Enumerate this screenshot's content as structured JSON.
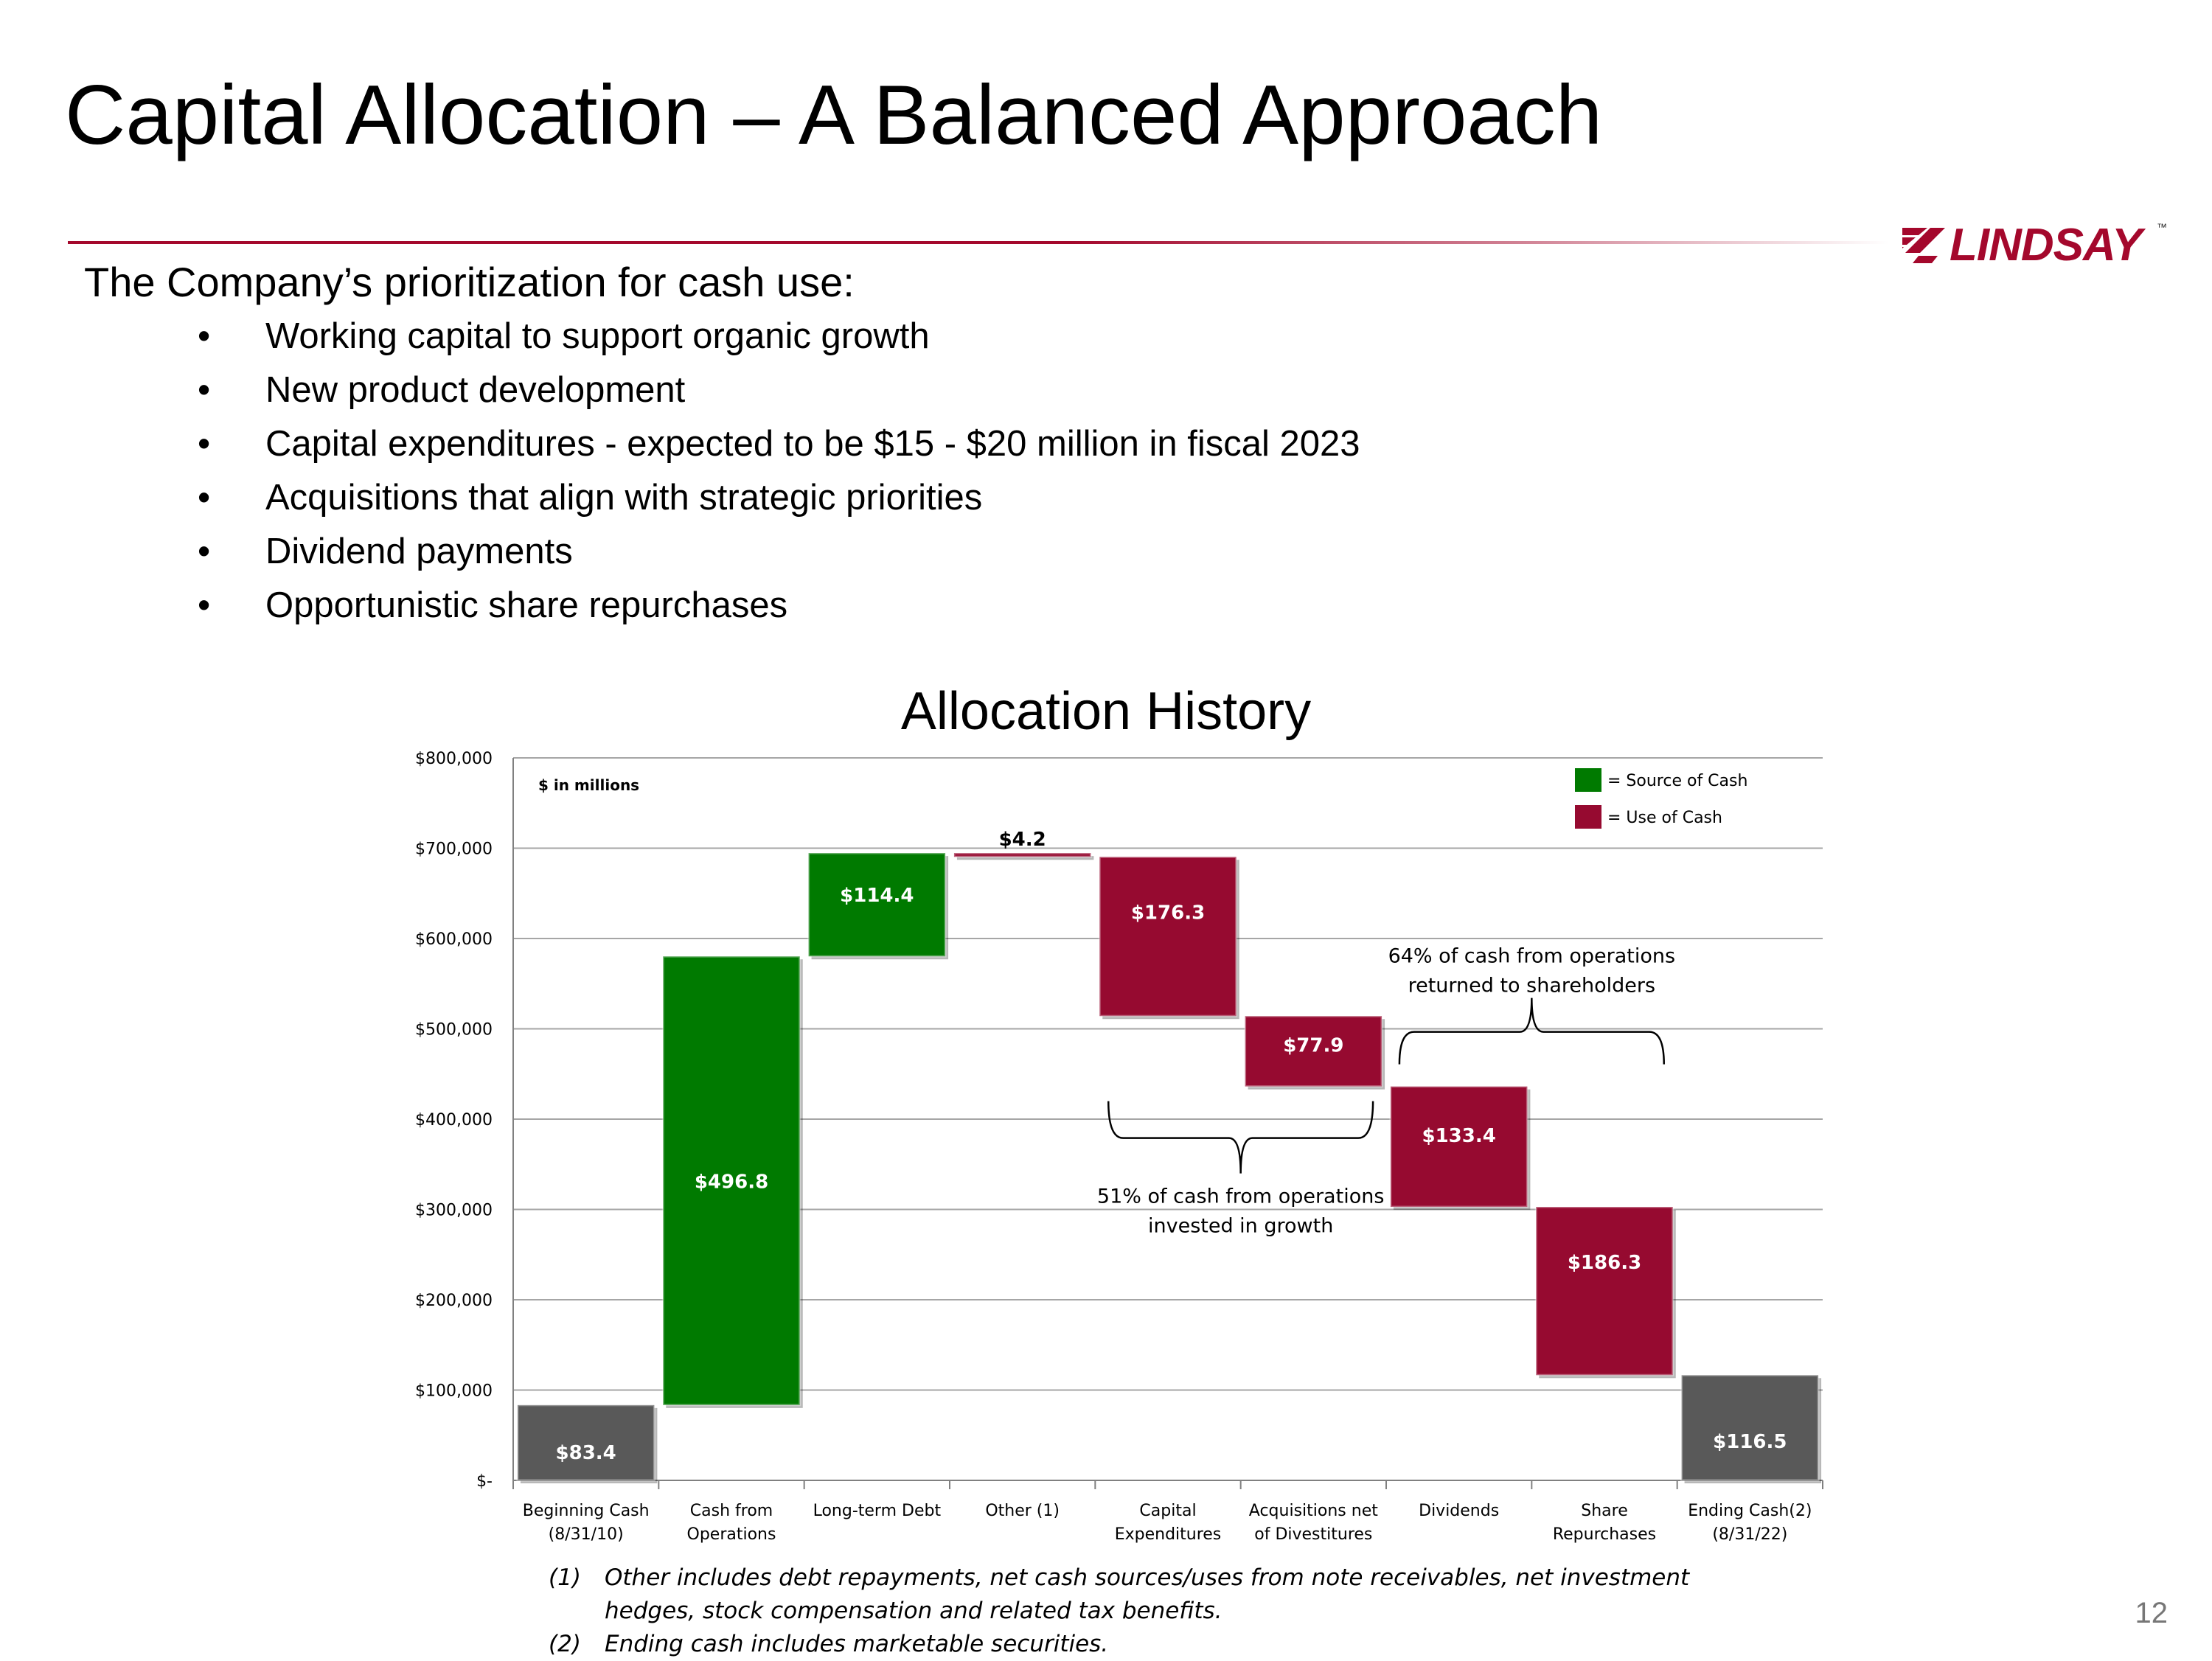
{
  "title": "Capital Allocation – A Balanced Approach",
  "logo": {
    "text": "LINDSAY",
    "tm": "™",
    "color": "#a4082c"
  },
  "intro": "The Company’s prioritization for cash use:",
  "bullet_symbol": "•",
  "bullets": [
    "Working capital to support organic growth",
    "New product development",
    "Capital expenditures - expected to be $15 - $20 million in fiscal 2023",
    "Acquisitions that align with strategic priorities",
    "Dividend payments",
    "Opportunistic share repurchases"
  ],
  "chart_data": {
    "type": "bar",
    "subtype": "waterfall",
    "title": "Allocation History",
    "units_note": "$ in millions",
    "ylim": [
      0,
      800000
    ],
    "yticks": [
      0,
      100000,
      200000,
      300000,
      400000,
      500000,
      600000,
      700000,
      800000
    ],
    "ytick_labels": [
      "$-",
      "$100,000",
      "$200,000",
      "$300,000",
      "$400,000",
      "$500,000",
      "$600,000",
      "$700,000",
      "$800,000"
    ],
    "grid": true,
    "categories": [
      [
        "Beginning Cash",
        "(8/31/10)"
      ],
      [
        "Cash from",
        "Operations"
      ],
      [
        "Long-term Debt"
      ],
      [
        "Other (1)"
      ],
      [
        "Capital",
        "Expenditures"
      ],
      [
        "Acquisitions net",
        "of Divestitures"
      ],
      [
        "Dividends"
      ],
      [
        "Share",
        "Repurchases"
      ],
      [
        "Ending Cash(2)",
        "(8/31/22)"
      ]
    ],
    "bars": [
      {
        "kind": "total",
        "start": 0,
        "end": 83400,
        "label": "$83.4"
      },
      {
        "kind": "source",
        "start": 83400,
        "end": 580200,
        "label": "$496.8"
      },
      {
        "kind": "source",
        "start": 580200,
        "end": 694600,
        "label": "$114.4"
      },
      {
        "kind": "use",
        "start": 694600,
        "end": 690400,
        "label": "$4.2"
      },
      {
        "kind": "use",
        "start": 690400,
        "end": 514100,
        "label": "$176.3"
      },
      {
        "kind": "use",
        "start": 514100,
        "end": 436200,
        "label": "$77.9"
      },
      {
        "kind": "use",
        "start": 436200,
        "end": 302800,
        "label": "$133.4"
      },
      {
        "kind": "use",
        "start": 302800,
        "end": 116500,
        "label": "$186.3"
      },
      {
        "kind": "total",
        "start": 0,
        "end": 116500,
        "label": "$116.5"
      }
    ],
    "legend": [
      {
        "kind": "source",
        "label": "= Source of Cash"
      },
      {
        "kind": "use",
        "label": "= Use of Cash"
      }
    ],
    "legend_position": "top-right",
    "colors": {
      "source": "#007a00",
      "use": "#960a30",
      "total": "#595959"
    },
    "annotations": [
      {
        "from_category": 4,
        "to_category": 5,
        "lines": [
          "51% of cash from operations",
          "invested in growth"
        ]
      },
      {
        "from_category": 6,
        "to_category": 7,
        "lines": [
          "64% of cash from operations",
          "returned to shareholders"
        ]
      }
    ]
  },
  "footnotes": [
    {
      "num": "(1)",
      "lines": [
        "Other includes debt repayments, net cash sources/uses from note receivables, net investment",
        "hedges, stock compensation and related tax benefits."
      ]
    },
    {
      "num": "(2)",
      "lines": [
        "Ending cash includes marketable securities."
      ]
    }
  ],
  "page_number": "12"
}
